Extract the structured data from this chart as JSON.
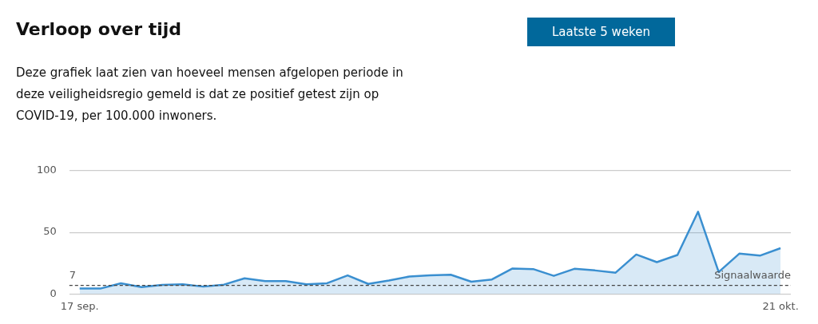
{
  "chart_data": {
    "type": "area",
    "title": "Verloop over tijd",
    "subtitle": "Deze grafiek laat zien van hoeveel mensen afgelopen periode in deze veiligheidsregio gemeld is dat ze positief getest zijn op COVID-19, per 100.000 inwoners.",
    "annotations": [
      "Laatste 5 weken",
      {
        "text": "7",
        "y": 7
      }
    ],
    "categories": [
      "17 sep.",
      null,
      null,
      null,
      null,
      null,
      null,
      null,
      null,
      null,
      null,
      null,
      null,
      null,
      null,
      null,
      null,
      null,
      null,
      null,
      null,
      null,
      null,
      null,
      null,
      null,
      null,
      null,
      null,
      null,
      null,
      null,
      null,
      null,
      "21 okt."
    ],
    "series": [
      {
        "color": "#3a8fd0",
        "values": [
          4.4,
          4.4,
          8.7,
          5.6,
          7.3,
          7.8,
          6,
          7.6,
          12.7,
          10.4,
          10.4,
          7.8,
          8.7,
          15.1,
          8.2,
          10.9,
          14.2,
          15.1,
          15.6,
          10,
          11.8,
          20.7,
          20.2,
          14.7,
          20.4,
          19.1,
          17.3,
          32,
          25.8,
          31.6,
          66.7,
          17.8,
          32.7,
          31.1,
          37.1
        ]
      }
    ],
    "ylim": [
      0,
      100
    ],
    "yticks": [
      0,
      50,
      100
    ],
    "grid": "y",
    "legend": false,
    "ref_lines": [
      {
        "axis": "y",
        "value": 7,
        "label": "Signaalwaarde",
        "line_style": "dashed",
        "color": "#444444"
      }
    ]
  }
}
